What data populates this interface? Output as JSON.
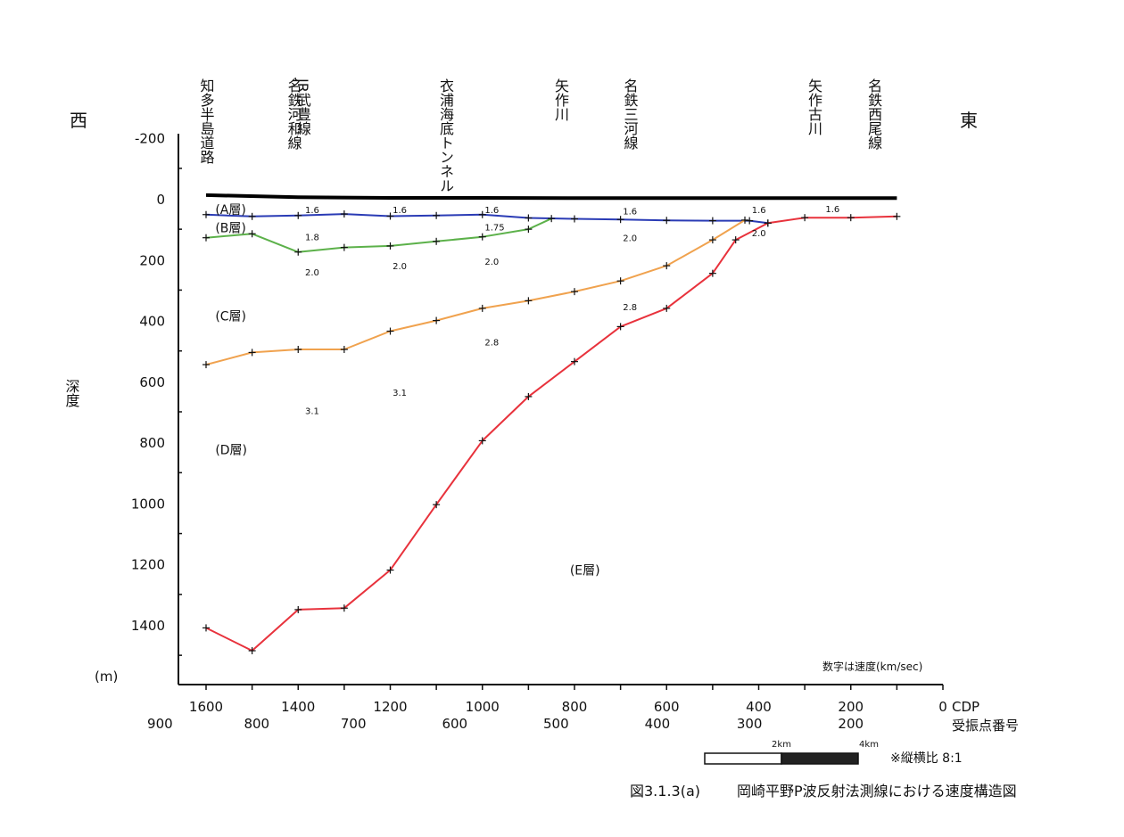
{
  "chart_data": {
    "type": "line",
    "title": "",
    "xlabel": "CDP",
    "x2label": "受振点番号",
    "ylabel": "深度",
    "yunit": "(m)",
    "west_label": "西",
    "east_label": "東",
    "xlim": [
      1600,
      0
    ],
    "ylim": [
      -200,
      1600
    ],
    "x_ticks": [
      1600,
      1400,
      1200,
      1000,
      800,
      600,
      400,
      200,
      0
    ],
    "x_tick_labels": [
      "1600",
      "1400",
      "1200",
      "1000",
      "800",
      "600",
      "400",
      "200",
      "0"
    ],
    "x2_ticks": [
      1700,
      1490,
      1280,
      1060,
      840,
      620,
      420,
      200
    ],
    "x2_tick_labels": [
      "900",
      "800",
      "700",
      "600",
      "500",
      "400",
      "300",
      "200"
    ],
    "y_ticks": [
      -200,
      0,
      200,
      400,
      600,
      800,
      1000,
      1200,
      1400
    ],
    "y_tick_labels": [
      "-200",
      "0",
      "200",
      "400",
      "600",
      "800",
      "1000",
      "1200",
      "1400"
    ],
    "landmarks": [
      {
        "cdp": 1600,
        "label": "知多半島道路"
      },
      {
        "cdp": 1410,
        "label": "名鉄河和線"
      },
      {
        "cdp": 1390,
        "label": "JR武豊線"
      },
      {
        "cdp": 1080,
        "label": "衣浦海底トンネル"
      },
      {
        "cdp": 830,
        "label": "矢作川"
      },
      {
        "cdp": 680,
        "label": "名鉄三河線"
      },
      {
        "cdp": 280,
        "label": "矢作古川"
      },
      {
        "cdp": 150,
        "label": "名鉄西尾線"
      }
    ],
    "series": [
      {
        "name": "",
        "color": "#000000",
        "markers": false,
        "x": [
          1600,
          1400,
          1200,
          1000,
          800,
          600,
          400,
          200,
          100
        ],
        "y": [
          -12,
          -5,
          -3,
          -3,
          -2,
          -2,
          -2,
          -2,
          -2
        ]
      },
      {
        "name": "",
        "color": "#2a3bb5",
        "markers": true,
        "x": [
          1600,
          1500,
          1400,
          1300,
          1200,
          1100,
          1000,
          900,
          800,
          700,
          600,
          500,
          420,
          380
        ],
        "y": [
          52,
          58,
          55,
          50,
          57,
          55,
          52,
          63,
          66,
          68,
          71,
          72,
          72,
          80
        ]
      },
      {
        "name": "",
        "color": "#5cb14a",
        "markers": true,
        "x": [
          1600,
          1500,
          1400,
          1300,
          1200,
          1100,
          1000,
          900,
          850
        ],
        "y": [
          128,
          115,
          175,
          160,
          155,
          140,
          125,
          100,
          65
        ]
      },
      {
        "name": "",
        "color": "#f0a24e",
        "markers": true,
        "x": [
          1600,
          1500,
          1400,
          1300,
          1200,
          1100,
          1000,
          900,
          800,
          700,
          600,
          500,
          430
        ],
        "y": [
          545,
          505,
          495,
          495,
          435,
          400,
          360,
          335,
          305,
          270,
          220,
          135,
          70
        ]
      },
      {
        "name": "",
        "color": "#e8323c",
        "markers": true,
        "x": [
          1600,
          1500,
          1400,
          1300,
          1200,
          1100,
          1000,
          900,
          800,
          700,
          600,
          500,
          450,
          380,
          300,
          200,
          100
        ],
        "y": [
          1410,
          1485,
          1350,
          1345,
          1220,
          1005,
          795,
          650,
          535,
          420,
          360,
          245,
          135,
          80,
          62,
          62,
          58
        ]
      }
    ],
    "layer_labels": [
      {
        "label": "(A層)",
        "x": 1580,
        "y": 35
      },
      {
        "label": "(B層)",
        "x": 1580,
        "y": 95
      },
      {
        "label": "(C層)",
        "x": 1580,
        "y": 385
      },
      {
        "label": "(D層)",
        "x": 1580,
        "y": 825
      },
      {
        "label": "(E層)",
        "x": 810,
        "y": 1220
      }
    ],
    "velocity_annotations": [
      {
        "label": "1.6",
        "x": 1385,
        "y": 35
      },
      {
        "label": "1.6",
        "x": 1195,
        "y": 35
      },
      {
        "label": "1.6",
        "x": 995,
        "y": 35
      },
      {
        "label": "1.6",
        "x": 695,
        "y": 40
      },
      {
        "label": "1.6",
        "x": 415,
        "y": 35
      },
      {
        "label": "1.6",
        "x": 255,
        "y": 32
      },
      {
        "label": "1.8",
        "x": 1385,
        "y": 125
      },
      {
        "label": "1.75",
        "x": 995,
        "y": 92
      },
      {
        "label": "2.0",
        "x": 695,
        "y": 128
      },
      {
        "label": "2.0",
        "x": 415,
        "y": 112
      },
      {
        "label": "2.0",
        "x": 1385,
        "y": 240
      },
      {
        "label": "2.0",
        "x": 1195,
        "y": 220
      },
      {
        "label": "2.0",
        "x": 995,
        "y": 205
      },
      {
        "label": "2.8",
        "x": 695,
        "y": 355
      },
      {
        "label": "2.8",
        "x": 995,
        "y": 470
      },
      {
        "label": "3.1",
        "x": 1195,
        "y": 635
      },
      {
        "label": "3.1",
        "x": 1385,
        "y": 695
      }
    ],
    "note": "数字は速度(km/sec)",
    "scale_bar": {
      "label_2": "2km",
      "label_4": "4km",
      "ratio_note": "※縦横比  8:1"
    },
    "caption_number": "図3.1.3(a)",
    "caption_text": "岡崎平野P波反射法測線における速度構造図",
    "grid": false
  }
}
